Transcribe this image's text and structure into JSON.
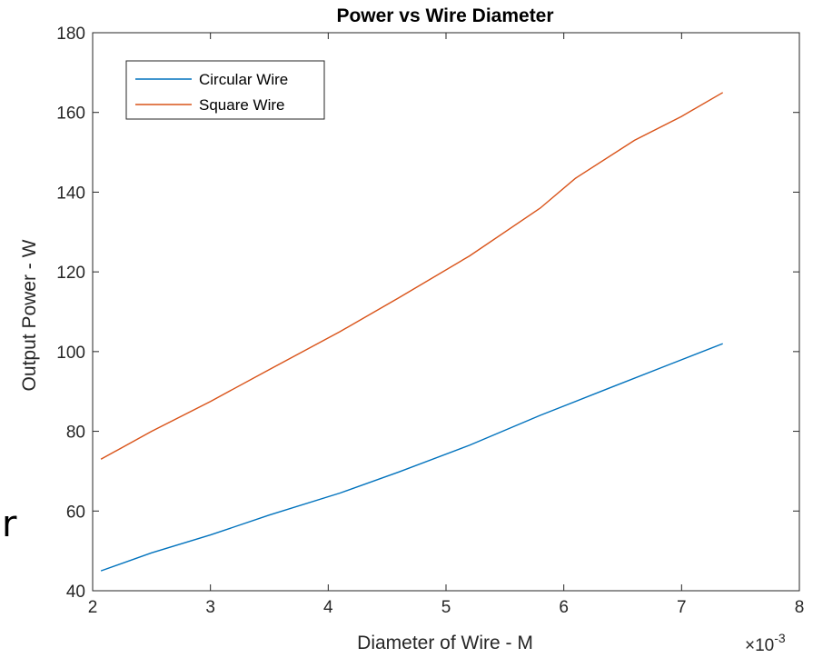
{
  "chart_data": {
    "type": "line",
    "title": "Power vs Wire Diameter",
    "xlabel": "Diameter of Wire - M",
    "ylabel": "Output Power - W",
    "x_exponent_label": "×10",
    "x_exponent_power": "-3",
    "xlim": [
      2,
      8
    ],
    "ylim": [
      40,
      180
    ],
    "x_ticks": [
      "2",
      "3",
      "4",
      "5",
      "6",
      "7",
      "8"
    ],
    "y_ticks": [
      "40",
      "60",
      "80",
      "100",
      "120",
      "140",
      "160",
      "180"
    ],
    "grid": false,
    "legend_position": "top-left",
    "series": [
      {
        "name": "Circular Wire",
        "color": "#0072bd",
        "x": [
          2.07,
          2.5,
          3.0,
          3.5,
          4.1,
          4.6,
          5.2,
          5.8,
          6.4,
          6.9,
          7.35
        ],
        "y": [
          45,
          49.5,
          54,
          59,
          64.5,
          69.8,
          76.5,
          84,
          91,
          96.8,
          102
        ]
      },
      {
        "name": "Square Wire",
        "color": "#d95319",
        "x": [
          2.07,
          2.5,
          3.0,
          3.5,
          4.1,
          4.6,
          5.2,
          5.8,
          6.1,
          6.6,
          7.0,
          7.35
        ],
        "y": [
          73,
          80,
          87.5,
          95.5,
          105,
          113.5,
          124,
          136,
          143.5,
          153,
          159,
          165
        ]
      }
    ]
  },
  "stray_text": "r"
}
